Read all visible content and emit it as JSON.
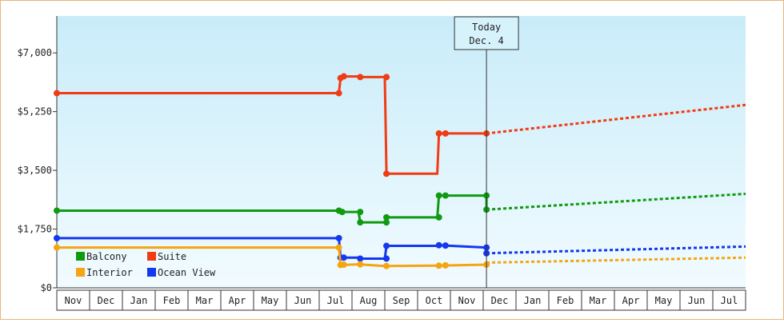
{
  "chart_data": {
    "type": "line",
    "y_ticks": [
      {
        "value": 0,
        "label": "$0"
      },
      {
        "value": 1750,
        "label": "$1,750"
      },
      {
        "value": 3500,
        "label": "$3,500"
      },
      {
        "value": 5250,
        "label": "$5,250"
      },
      {
        "value": 7000,
        "label": "$7,000"
      }
    ],
    "ylim": [
      0,
      8100
    ],
    "x_categories": [
      "Nov",
      "Dec",
      "Jan",
      "Feb",
      "Mar",
      "Apr",
      "May",
      "Jun",
      "Jul",
      "Aug",
      "Sep",
      "Oct",
      "Nov",
      "Dec",
      "Jan",
      "Feb",
      "Mar",
      "Apr",
      "May",
      "Jun",
      "Jul"
    ],
    "grid": false,
    "legend_position": "bottom-left",
    "today": {
      "line1": "Today",
      "line2": "Dec. 4",
      "x": 13.1
    },
    "series": [
      {
        "name": "Suite",
        "color": "#f03c14",
        "points": [
          [
            0,
            5800
          ],
          [
            8.6,
            5800
          ],
          [
            8.65,
            6250
          ],
          [
            8.75,
            6300
          ],
          [
            9.2,
            6300
          ],
          [
            9.25,
            6280
          ],
          [
            10.0,
            6280
          ],
          [
            10.05,
            3400
          ],
          [
            11.6,
            3400
          ],
          [
            11.65,
            4600
          ],
          [
            11.85,
            4600
          ],
          [
            13.1,
            4600
          ]
        ],
        "markers": [
          [
            0,
            5800
          ],
          [
            8.6,
            5800
          ],
          [
            8.65,
            6250
          ],
          [
            8.75,
            6300
          ],
          [
            9.25,
            6280
          ],
          [
            10.05,
            6280
          ],
          [
            10.05,
            3400
          ],
          [
            11.65,
            4600
          ],
          [
            11.85,
            4600
          ],
          [
            13.1,
            4600
          ]
        ],
        "forecast": [
          [
            13.1,
            4600
          ],
          [
            21,
            5450
          ]
        ]
      },
      {
        "name": "Balcony",
        "color": "#0f9a0f",
        "points": [
          [
            0,
            2300
          ],
          [
            8.6,
            2300
          ],
          [
            8.7,
            2260
          ],
          [
            9.2,
            2260
          ],
          [
            9.25,
            1950
          ],
          [
            10.0,
            1950
          ],
          [
            10.05,
            2100
          ],
          [
            11.6,
            2100
          ],
          [
            11.65,
            2750
          ],
          [
            13.1,
            2750
          ],
          [
            13.1,
            2330
          ]
        ],
        "markers": [
          [
            0,
            2300
          ],
          [
            8.6,
            2300
          ],
          [
            8.7,
            2260
          ],
          [
            9.25,
            2260
          ],
          [
            9.25,
            1950
          ],
          [
            10.05,
            1950
          ],
          [
            10.05,
            2100
          ],
          [
            11.65,
            2100
          ],
          [
            11.65,
            2750
          ],
          [
            11.85,
            2750
          ],
          [
            13.1,
            2750
          ],
          [
            13.1,
            2330
          ]
        ],
        "forecast": [
          [
            13.1,
            2330
          ],
          [
            21,
            2800
          ]
        ]
      },
      {
        "name": "Ocean View",
        "color": "#1438f0",
        "points": [
          [
            0,
            1480
          ],
          [
            8.6,
            1480
          ],
          [
            8.65,
            900
          ],
          [
            9.2,
            900
          ],
          [
            9.25,
            870
          ],
          [
            10.0,
            870
          ],
          [
            10.05,
            1250
          ],
          [
            11.6,
            1250
          ],
          [
            11.65,
            1270
          ],
          [
            13.1,
            1200
          ],
          [
            13.1,
            1030
          ]
        ],
        "markers": [
          [
            0,
            1480
          ],
          [
            8.6,
            1480
          ],
          [
            8.65,
            900
          ],
          [
            8.75,
            900
          ],
          [
            9.25,
            870
          ],
          [
            10.05,
            870
          ],
          [
            10.05,
            1250
          ],
          [
            11.65,
            1270
          ],
          [
            11.85,
            1260
          ],
          [
            13.1,
            1200
          ],
          [
            13.1,
            1030
          ]
        ],
        "forecast": [
          [
            13.1,
            1030
          ],
          [
            21,
            1230
          ]
        ]
      },
      {
        "name": "Interior",
        "color": "#f5a511",
        "points": [
          [
            0,
            1200
          ],
          [
            8.6,
            1200
          ],
          [
            8.65,
            680
          ],
          [
            9.2,
            700
          ],
          [
            10.0,
            650
          ],
          [
            11.6,
            660
          ],
          [
            13.1,
            690
          ]
        ],
        "markers": [
          [
            0,
            1200
          ],
          [
            8.6,
            1200
          ],
          [
            8.65,
            680
          ],
          [
            8.75,
            690
          ],
          [
            9.25,
            700
          ],
          [
            10.05,
            650
          ],
          [
            11.65,
            660
          ],
          [
            11.85,
            670
          ],
          [
            13.1,
            690
          ]
        ],
        "forecast": [
          [
            13.1,
            750
          ],
          [
            21,
            900
          ]
        ]
      }
    ],
    "legend": [
      {
        "name": "Balcony",
        "color": "#0f9a0f"
      },
      {
        "name": "Suite",
        "color": "#f03c14"
      },
      {
        "name": "Interior",
        "color": "#f5a511"
      },
      {
        "name": "Ocean View",
        "color": "#1438f0"
      }
    ]
  }
}
